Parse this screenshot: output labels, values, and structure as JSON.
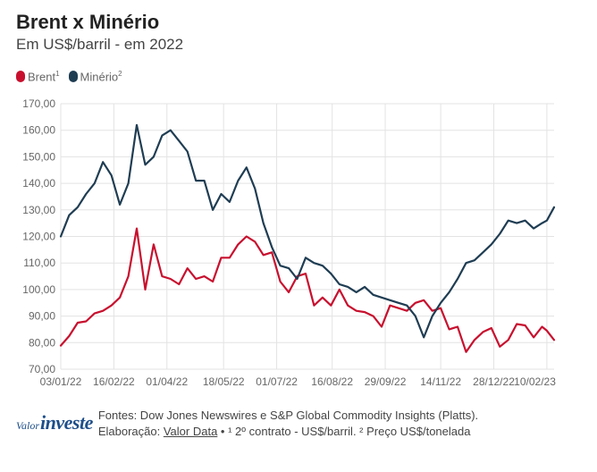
{
  "header": {
    "title": "Brent x Minério",
    "subtitle": "Em US$/barril - em 2022"
  },
  "legend": {
    "items": [
      {
        "label": "Brent",
        "sup": "1",
        "color": "#c8102e"
      },
      {
        "label": "Minério",
        "sup": "2",
        "color": "#1f3d53"
      }
    ]
  },
  "footer": {
    "logo_small": "Valor",
    "logo_big": "investe",
    "sources": "Fontes: Dow Jones Newswires e S&P Global Commodity Insights (Platts).",
    "elaboracao_prefix": "Elaboração: ",
    "elaboracao_link": "Valor Data",
    "notes": " • ¹ 2º contrato - US$/barril. ² Preço US$/tonelada"
  },
  "chart_data": {
    "type": "line",
    "title": "Brent x Minério",
    "subtitle": "Em US$/barril - em 2022",
    "ylim": [
      70,
      170
    ],
    "y_ticks": [
      "70,00",
      "80,00",
      "90,00",
      "100,00",
      "110,00",
      "120,00",
      "130,00",
      "140,00",
      "150,00",
      "160,00",
      "170,00"
    ],
    "x_ticks": [
      "03/01/22",
      "16/02/22",
      "01/04/22",
      "18/05/22",
      "01/07/22",
      "16/08/22",
      "29/09/22",
      "14/11/22",
      "28/12/22",
      "10/02/23"
    ],
    "grid": true,
    "legend_position": "top-left",
    "series": [
      {
        "name": "Brent",
        "sup": "1",
        "color": "#c8102e",
        "points": [
          [
            "03/01/22",
            78.9
          ],
          [
            "10/01/22",
            82.5
          ],
          [
            "17/01/22",
            87.5
          ],
          [
            "24/01/22",
            88.0
          ],
          [
            "31/01/22",
            91.0
          ],
          [
            "07/02/22",
            92.0
          ],
          [
            "14/02/22",
            94.0
          ],
          [
            "21/02/22",
            97.0
          ],
          [
            "28/02/22",
            105.0
          ],
          [
            "07/03/22",
            123.0
          ],
          [
            "14/03/22",
            100.0
          ],
          [
            "21/03/22",
            117.0
          ],
          [
            "28/03/22",
            105.0
          ],
          [
            "04/04/22",
            104.0
          ],
          [
            "11/04/22",
            102.0
          ],
          [
            "18/04/22",
            108.0
          ],
          [
            "25/04/22",
            104.0
          ],
          [
            "02/05/22",
            105.0
          ],
          [
            "09/05/22",
            103.0
          ],
          [
            "16/05/22",
            112.0
          ],
          [
            "23/05/22",
            112.0
          ],
          [
            "30/05/22",
            117.0
          ],
          [
            "06/06/22",
            120.0
          ],
          [
            "13/06/22",
            118.0
          ],
          [
            "20/06/22",
            113.0
          ],
          [
            "27/06/22",
            114.0
          ],
          [
            "04/07/22",
            103.0
          ],
          [
            "11/07/22",
            99.0
          ],
          [
            "18/07/22",
            105.0
          ],
          [
            "25/07/22",
            106.0
          ],
          [
            "01/08/22",
            94.0
          ],
          [
            "08/08/22",
            97.0
          ],
          [
            "15/08/22",
            94.0
          ],
          [
            "22/08/22",
            100.0
          ],
          [
            "29/08/22",
            94.0
          ],
          [
            "05/09/22",
            92.0
          ],
          [
            "12/09/22",
            91.5
          ],
          [
            "19/09/22",
            90.0
          ],
          [
            "26/09/22",
            86.0
          ],
          [
            "03/10/22",
            94.0
          ],
          [
            "10/10/22",
            93.0
          ],
          [
            "17/10/22",
            92.0
          ],
          [
            "24/10/22",
            95.0
          ],
          [
            "31/10/22",
            96.0
          ],
          [
            "07/11/22",
            92.0
          ],
          [
            "14/11/22",
            93.0
          ],
          [
            "21/11/22",
            85.0
          ],
          [
            "28/11/22",
            86.0
          ],
          [
            "05/12/22",
            76.5
          ],
          [
            "12/12/22",
            81.0
          ],
          [
            "19/12/22",
            84.0
          ],
          [
            "26/12/22",
            85.5
          ],
          [
            "02/01/23",
            78.5
          ],
          [
            "09/01/23",
            81.0
          ],
          [
            "16/01/23",
            87.0
          ],
          [
            "23/01/23",
            86.5
          ],
          [
            "30/01/23",
            82.0
          ],
          [
            "06/02/23",
            86.0
          ],
          [
            "10/02/23",
            84.5
          ],
          [
            "16/02/23",
            81.0
          ]
        ]
      },
      {
        "name": "Minério",
        "sup": "2",
        "color": "#1f3d53",
        "points": [
          [
            "03/01/22",
            120.0
          ],
          [
            "10/01/22",
            128.0
          ],
          [
            "17/01/22",
            131.0
          ],
          [
            "24/01/22",
            136.0
          ],
          [
            "31/01/22",
            140.0
          ],
          [
            "07/02/22",
            148.0
          ],
          [
            "14/02/22",
            143.0
          ],
          [
            "21/02/22",
            132.0
          ],
          [
            "28/02/22",
            140.0
          ],
          [
            "07/03/22",
            162.0
          ],
          [
            "14/03/22",
            147.0
          ],
          [
            "21/03/22",
            150.0
          ],
          [
            "28/03/22",
            158.0
          ],
          [
            "04/04/22",
            160.0
          ],
          [
            "11/04/22",
            156.0
          ],
          [
            "18/04/22",
            152.0
          ],
          [
            "25/04/22",
            141.0
          ],
          [
            "02/05/22",
            141.0
          ],
          [
            "09/05/22",
            130.0
          ],
          [
            "16/05/22",
            136.0
          ],
          [
            "23/05/22",
            133.0
          ],
          [
            "30/05/22",
            141.0
          ],
          [
            "06/06/22",
            146.0
          ],
          [
            "13/06/22",
            138.0
          ],
          [
            "20/06/22",
            125.0
          ],
          [
            "27/06/22",
            116.0
          ],
          [
            "04/07/22",
            109.0
          ],
          [
            "11/07/22",
            108.0
          ],
          [
            "18/07/22",
            104.0
          ],
          [
            "25/07/22",
            112.0
          ],
          [
            "01/08/22",
            110.0
          ],
          [
            "08/08/22",
            109.0
          ],
          [
            "15/08/22",
            106.0
          ],
          [
            "22/08/22",
            102.0
          ],
          [
            "29/08/22",
            101.0
          ],
          [
            "05/09/22",
            99.0
          ],
          [
            "12/09/22",
            101.0
          ],
          [
            "19/09/22",
            98.0
          ],
          [
            "26/09/22",
            97.0
          ],
          [
            "03/10/22",
            96.0
          ],
          [
            "10/10/22",
            95.0
          ],
          [
            "17/10/22",
            94.0
          ],
          [
            "24/10/22",
            90.0
          ],
          [
            "31/10/22",
            82.0
          ],
          [
            "07/11/22",
            90.0
          ],
          [
            "14/11/22",
            95.0
          ],
          [
            "21/11/22",
            99.0
          ],
          [
            "28/11/22",
            104.0
          ],
          [
            "05/12/22",
            110.0
          ],
          [
            "12/12/22",
            111.0
          ],
          [
            "19/12/22",
            114.0
          ],
          [
            "26/12/22",
            117.0
          ],
          [
            "02/01/23",
            121.0
          ],
          [
            "09/01/23",
            126.0
          ],
          [
            "16/01/23",
            125.0
          ],
          [
            "23/01/23",
            126.0
          ],
          [
            "30/01/23",
            123.0
          ],
          [
            "06/02/23",
            125.0
          ],
          [
            "10/02/23",
            126.0
          ],
          [
            "16/02/23",
            131.0
          ]
        ]
      }
    ]
  }
}
